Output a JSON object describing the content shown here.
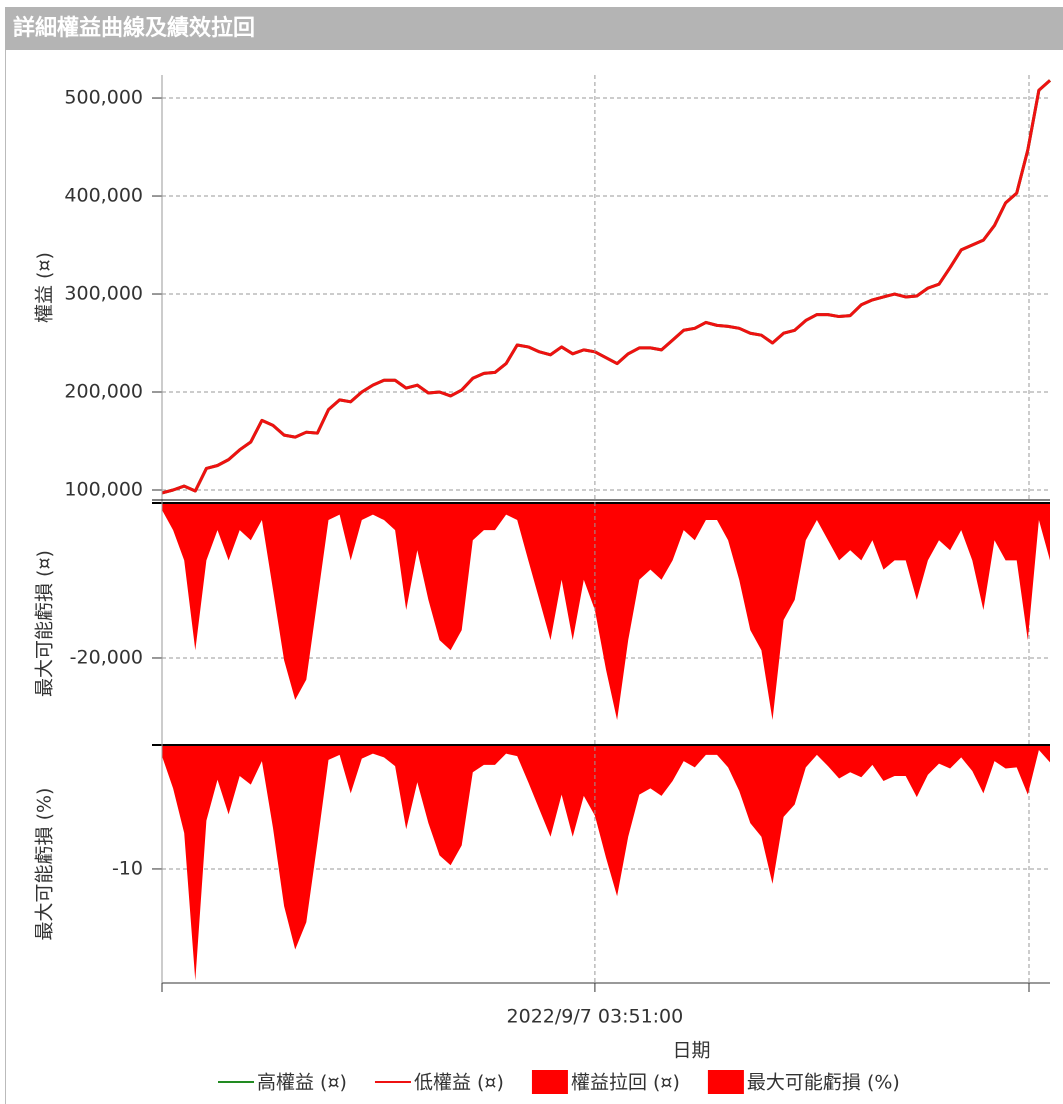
{
  "header": {
    "title": "詳細權益曲線及績效拉回"
  },
  "chart_data": [
    {
      "type": "line",
      "ylabel": "權益 (¤)",
      "ylim": [
        89800,
        523500
      ],
      "yticks": [
        {
          "value": 100000,
          "label": "100,000"
        },
        {
          "value": 200000,
          "label": "200,000"
        },
        {
          "value": 300000,
          "label": "300,000"
        },
        {
          "value": 400000,
          "label": "400,000"
        },
        {
          "value": 500000,
          "label": "500,000"
        }
      ],
      "grid": true,
      "series": [
        {
          "name": "高權益 (¤)",
          "color": "#228b22",
          "values": [
            97000,
            100000,
            104000,
            99000,
            122000,
            125000,
            131000,
            141000,
            149000,
            171000,
            166000,
            156000,
            154000,
            159000,
            158000,
            182000,
            192000,
            190000,
            200000,
            207000,
            212000,
            212000,
            204000,
            207000,
            199000,
            200000,
            196000,
            202000,
            214000,
            219000,
            220000,
            229000,
            248000,
            246000,
            241000,
            238000,
            246000,
            239000,
            243000,
            241000,
            235000,
            229000,
            239000,
            245000,
            245000,
            243000,
            253000,
            263000,
            265000,
            271000,
            268000,
            267000,
            265000,
            260000,
            258000,
            250000,
            260000,
            263000,
            273000,
            279000,
            279000,
            277000,
            278000,
            289000,
            294000,
            297000,
            300000,
            297000,
            298000,
            306000,
            310000,
            327000,
            345000,
            350000,
            355000,
            370000,
            393000,
            403000,
            447000,
            508000,
            518000
          ]
        },
        {
          "name": "低權益 (¤)",
          "color": "#ee1111",
          "values": [
            97000,
            100000,
            104000,
            99000,
            122000,
            125000,
            131000,
            141000,
            149000,
            171000,
            166000,
            156000,
            154000,
            159000,
            158000,
            182000,
            192000,
            190000,
            200000,
            207000,
            212000,
            212000,
            204000,
            207000,
            199000,
            200000,
            196000,
            202000,
            214000,
            219000,
            220000,
            229000,
            248000,
            246000,
            241000,
            238000,
            246000,
            239000,
            243000,
            241000,
            235000,
            229000,
            239000,
            245000,
            245000,
            243000,
            253000,
            263000,
            265000,
            271000,
            268000,
            267000,
            265000,
            260000,
            258000,
            250000,
            260000,
            263000,
            273000,
            279000,
            279000,
            277000,
            278000,
            289000,
            294000,
            297000,
            300000,
            297000,
            298000,
            306000,
            310000,
            327000,
            345000,
            350000,
            355000,
            370000,
            393000,
            403000,
            447000,
            508000,
            518000
          ]
        }
      ]
    },
    {
      "type": "area",
      "ylabel": "最大可能虧損 (¤)",
      "ylim": [
        -31100,
        0
      ],
      "yticks": [
        {
          "value": -20000,
          "label": "-20,000"
        }
      ],
      "grid": true,
      "series": [
        {
          "name": "權益拉回 (¤)",
          "color": "#ff0000",
          "values": [
            -900,
            -3500,
            -7400,
            -19000,
            -7400,
            -3500,
            -7400,
            -3500,
            -4800,
            -2200,
            -11200,
            -20300,
            -25400,
            -22800,
            -12500,
            -2200,
            -1500,
            -7400,
            -2200,
            -1500,
            -2200,
            -3500,
            -13800,
            -6100,
            -12500,
            -17700,
            -19000,
            -16400,
            -4800,
            -3500,
            -3500,
            -1500,
            -2200,
            -7400,
            -12500,
            -17700,
            -9900,
            -17700,
            -9900,
            -13800,
            -21500,
            -28000,
            -17700,
            -9900,
            -8600,
            -9900,
            -7400,
            -3500,
            -4800,
            -2200,
            -2200,
            -4800,
            -9900,
            -16400,
            -19000,
            -28000,
            -15100,
            -12500,
            -4800,
            -2200,
            -4800,
            -7400,
            -6100,
            -7400,
            -4800,
            -8600,
            -7400,
            -7400,
            -12500,
            -7400,
            -4800,
            -6100,
            -3500,
            -7400,
            -13800,
            -4800,
            -7400,
            -7400,
            -17700,
            -2200,
            -7400
          ]
        }
      ]
    },
    {
      "type": "area",
      "ylabel": "最大可能虧損 (%)",
      "ylim": [
        -19.2,
        0
      ],
      "yticks": [
        -10
      ],
      "grid": true,
      "xlabel": "日期",
      "categories": [
        null,
        null,
        null,
        null,
        null,
        null,
        null,
        null,
        null,
        null,
        null,
        null,
        null,
        null,
        null,
        null,
        null,
        null,
        null,
        null,
        null,
        null,
        null,
        null,
        null,
        null,
        null,
        null,
        null,
        null,
        null,
        null,
        null,
        null,
        null,
        null,
        null,
        null,
        null,
        "2022/9/7 03:51:00",
        null,
        null,
        null,
        null,
        null,
        null,
        null,
        null,
        null,
        null,
        null,
        null,
        null,
        null,
        null,
        null,
        null,
        null,
        null,
        null,
        null,
        null,
        null,
        null,
        null,
        null,
        null,
        null,
        null,
        null,
        null,
        null,
        null,
        null,
        null,
        null,
        null,
        null,
        null,
        null,
        null
      ],
      "series": [
        {
          "name": "最大可能虧損 (%)",
          "color": "#ff0000",
          "values": [
            -0.9,
            -3.5,
            -7.1,
            -19.0,
            -6.1,
            -2.8,
            -5.6,
            -2.5,
            -3.2,
            -1.3,
            -6.7,
            -13.0,
            -16.5,
            -14.3,
            -7.9,
            -1.2,
            -0.8,
            -3.9,
            -1.1,
            -0.7,
            -1.0,
            -1.7,
            -6.8,
            -3.0,
            -6.3,
            -8.9,
            -9.7,
            -8.1,
            -2.2,
            -1.6,
            -1.6,
            -0.7,
            -0.9,
            -3.0,
            -5.2,
            -7.4,
            -4.0,
            -7.4,
            -4.1,
            -5.7,
            -9.1,
            -12.2,
            -7.4,
            -4.0,
            -3.5,
            -4.1,
            -2.9,
            -1.3,
            -1.8,
            -0.8,
            -0.8,
            -1.8,
            -3.7,
            -6.3,
            -7.4,
            -11.2,
            -5.8,
            -4.8,
            -1.8,
            -0.8,
            -1.7,
            -2.7,
            -2.2,
            -2.6,
            -1.6,
            -2.9,
            -2.5,
            -2.5,
            -4.2,
            -2.4,
            -1.5,
            -1.9,
            -1.0,
            -2.1,
            -3.9,
            -1.3,
            -1.9,
            -1.8,
            -4.0,
            -0.4,
            -1.4
          ]
        }
      ]
    }
  ]
}
